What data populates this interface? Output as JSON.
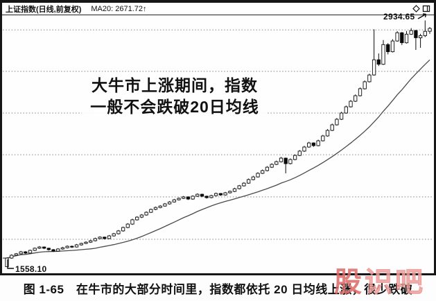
{
  "titlebar": {
    "title": "上证指数(日线,前复权)",
    "ma_label": "MA20: 2671.72↑",
    "icons": [
      "diamond-icon",
      "window-icon"
    ]
  },
  "chart_data": {
    "type": "candlestick",
    "symbol": "上证指数",
    "timeframe": "日线",
    "adjustment": "前复权",
    "ma20_latest": 2671.72,
    "start_value": 1558.1,
    "start_label": "1558.10",
    "peak_value": 2934.65,
    "peak_label": "2934.65",
    "ylim": [
      1525,
      2960
    ],
    "grid_on": true,
    "grid_levels": [
      2882,
      2650,
      2417,
      2184,
      1948,
      1711
    ],
    "ma_period": 20,
    "annotation": {
      "line1": "大牛市上涨期间，指数",
      "line2": "一般不会跌破20日均线"
    },
    "candles": [
      [
        1558.1,
        1610,
        1558.1,
        1606
      ],
      [
        1606,
        1627,
        1602,
        1622
      ],
      [
        1622,
        1634,
        1618,
        1630
      ],
      [
        1630,
        1646,
        1627,
        1641
      ],
      [
        1641,
        1645,
        1629,
        1634
      ],
      [
        1634,
        1653,
        1631,
        1649
      ],
      [
        1649,
        1665,
        1645,
        1661
      ],
      [
        1661,
        1673,
        1657,
        1668
      ],
      [
        1668,
        1671,
        1656,
        1661
      ],
      [
        1661,
        1664,
        1648,
        1653
      ],
      [
        1653,
        1657,
        1640,
        1645
      ],
      [
        1645,
        1661,
        1642,
        1657
      ],
      [
        1657,
        1669,
        1653,
        1664
      ],
      [
        1664,
        1677,
        1660,
        1672
      ],
      [
        1672,
        1676,
        1663,
        1668
      ],
      [
        1668,
        1685,
        1665,
        1680
      ],
      [
        1680,
        1692,
        1676,
        1688
      ],
      [
        1688,
        1700,
        1684,
        1695
      ],
      [
        1695,
        1708,
        1691,
        1703
      ],
      [
        1703,
        1720,
        1699,
        1715
      ],
      [
        1715,
        1728,
        1711,
        1723
      ],
      [
        1723,
        1726,
        1710,
        1715
      ],
      [
        1715,
        1735,
        1712,
        1730
      ],
      [
        1730,
        1747,
        1726,
        1742
      ],
      [
        1742,
        1763,
        1738,
        1758
      ],
      [
        1758,
        1782,
        1754,
        1777
      ],
      [
        1777,
        1801,
        1773,
        1796
      ],
      [
        1796,
        1826,
        1792,
        1820
      ],
      [
        1820,
        1840,
        1816,
        1835
      ],
      [
        1835,
        1852,
        1830,
        1847
      ],
      [
        1847,
        1867,
        1843,
        1862
      ],
      [
        1862,
        1883,
        1858,
        1878
      ],
      [
        1878,
        1894,
        1874,
        1889
      ],
      [
        1889,
        1902,
        1885,
        1897
      ],
      [
        1897,
        1914,
        1893,
        1909
      ],
      [
        1909,
        1925,
        1905,
        1920
      ],
      [
        1920,
        1937,
        1916,
        1932
      ],
      [
        1932,
        1945,
        1928,
        1940
      ],
      [
        1940,
        1953,
        1936,
        1948
      ],
      [
        1948,
        1951,
        1931,
        1936
      ],
      [
        1936,
        1957,
        1932,
        1952
      ],
      [
        1952,
        1968,
        1948,
        1963
      ],
      [
        1963,
        1966,
        1947,
        1952
      ],
      [
        1952,
        1955,
        1939,
        1944
      ],
      [
        1944,
        1960,
        1940,
        1955
      ],
      [
        1955,
        1972,
        1951,
        1967
      ],
      [
        1967,
        1970,
        1954,
        1959
      ],
      [
        1959,
        1976,
        1955,
        1971
      ],
      [
        1971,
        1984,
        1967,
        1979
      ],
      [
        1979,
        1999,
        1975,
        1994
      ],
      [
        1994,
        2015,
        1990,
        2010
      ],
      [
        2010,
        2030,
        2006,
        2025
      ],
      [
        2025,
        2051,
        2021,
        2045
      ],
      [
        2045,
        2066,
        2041,
        2060
      ],
      [
        2060,
        2086,
        2056,
        2080
      ],
      [
        2080,
        2101,
        2076,
        2095
      ],
      [
        2095,
        2120,
        2091,
        2114
      ],
      [
        2114,
        2136,
        2110,
        2130
      ],
      [
        2130,
        2151,
        2126,
        2145
      ],
      [
        2145,
        2171,
        2141,
        2165
      ],
      [
        2165,
        2168,
        2080,
        2134
      ],
      [
        2134,
        2163,
        2130,
        2157
      ],
      [
        2157,
        2186,
        2153,
        2180
      ],
      [
        2180,
        2210,
        2176,
        2204
      ],
      [
        2204,
        2233,
        2200,
        2227
      ],
      [
        2227,
        2256,
        2223,
        2250
      ],
      [
        2250,
        2253,
        2228,
        2235
      ],
      [
        2235,
        2268,
        2231,
        2262
      ],
      [
        2262,
        2295,
        2258,
        2289
      ],
      [
        2289,
        2327,
        2285,
        2320
      ],
      [
        2320,
        2358,
        2316,
        2351
      ],
      [
        2351,
        2389,
        2347,
        2382
      ],
      [
        2382,
        2424,
        2378,
        2417
      ],
      [
        2417,
        2459,
        2413,
        2452
      ],
      [
        2452,
        2490,
        2448,
        2483
      ],
      [
        2483,
        2521,
        2479,
        2514
      ],
      [
        2514,
        2560,
        2510,
        2553
      ],
      [
        2553,
        2599,
        2549,
        2592
      ],
      [
        2592,
        2637,
        2588,
        2630
      ],
      [
        2630,
        2885,
        2626,
        2715
      ],
      [
        2715,
        2750,
        2680,
        2690
      ],
      [
        2690,
        2825,
        2686,
        2800
      ],
      [
        2800,
        2808,
        2745,
        2760
      ],
      [
        2760,
        2830,
        2756,
        2820
      ],
      [
        2820,
        2875,
        2816,
        2866
      ],
      [
        2866,
        2870,
        2798,
        2810
      ],
      [
        2810,
        2876,
        2806,
        2858
      ],
      [
        2858,
        2892,
        2854,
        2878
      ],
      [
        2878,
        2882,
        2770,
        2838
      ],
      [
        2838,
        2860,
        2782,
        2850
      ],
      [
        2850,
        2934.65,
        2842,
        2874
      ],
      [
        2874,
        2898,
        2860,
        2890
      ]
    ]
  },
  "colors": {
    "candle_up_fill": "#fefefe",
    "candle_down_fill": "#0a0a0a",
    "stroke": "#0a0a0a",
    "ma_line": "#4a4a4a",
    "grid": "#8a8a8a",
    "frame": "#161616",
    "watermark": "#dd6a66"
  },
  "watermark": {
    "text": "股识吧",
    "chars": [
      "股",
      "识",
      "吧"
    ]
  },
  "caption": {
    "text": "图 1-65　在牛市的大部分时间里，指数都依托 20 日均线上涨，很少跌破"
  }
}
